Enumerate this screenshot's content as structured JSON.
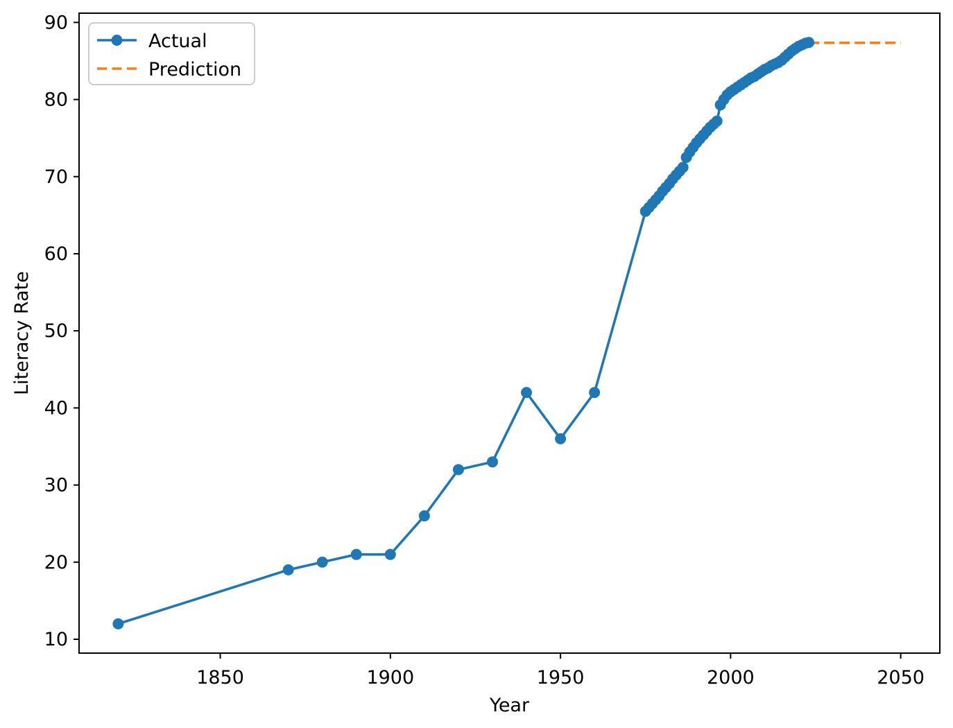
{
  "chart_data": {
    "type": "line",
    "title": "",
    "xlabel": "Year",
    "ylabel": "Literacy Rate",
    "xlim": [
      1808.5,
      2061.5
    ],
    "ylim": [
      8.2,
      91.2
    ],
    "xticks": [
      1850,
      1900,
      1950,
      2000,
      2050
    ],
    "yticks": [
      10,
      20,
      30,
      40,
      50,
      60,
      70,
      80,
      90
    ],
    "grid": false,
    "legend": {
      "position": "upper left",
      "items": [
        "Actual",
        "Prediction"
      ]
    },
    "series": [
      {
        "name": "Actual",
        "color": "#1f77b4",
        "line_style": "solid",
        "marker": "circle",
        "points": [
          [
            1820,
            12
          ],
          [
            1870,
            19
          ],
          [
            1880,
            20
          ],
          [
            1890,
            21
          ],
          [
            1900,
            21
          ],
          [
            1910,
            26
          ],
          [
            1920,
            32
          ],
          [
            1930,
            33
          ],
          [
            1940,
            42
          ],
          [
            1950,
            36
          ],
          [
            1960,
            42
          ],
          [
            1975,
            65.5
          ],
          [
            1976,
            66.0
          ],
          [
            1977,
            66.5
          ],
          [
            1978,
            67.0
          ],
          [
            1979,
            67.5
          ],
          [
            1980,
            68.1
          ],
          [
            1981,
            68.6
          ],
          [
            1982,
            69.1
          ],
          [
            1983,
            69.7
          ],
          [
            1984,
            70.2
          ],
          [
            1985,
            70.7
          ],
          [
            1986,
            71.2
          ],
          [
            1987,
            72.5
          ],
          [
            1988,
            73.2
          ],
          [
            1989,
            73.8
          ],
          [
            1990,
            74.4
          ],
          [
            1991,
            74.9
          ],
          [
            1992,
            75.4
          ],
          [
            1993,
            75.9
          ],
          [
            1994,
            76.4
          ],
          [
            1995,
            76.8
          ],
          [
            1996,
            77.2
          ],
          [
            1997,
            79.3
          ],
          [
            1998,
            80.0
          ],
          [
            1999,
            80.6
          ],
          [
            2000,
            81.0
          ],
          [
            2001,
            81.3
          ],
          [
            2002,
            81.6
          ],
          [
            2003,
            81.9
          ],
          [
            2004,
            82.2
          ],
          [
            2005,
            82.5
          ],
          [
            2006,
            82.8
          ],
          [
            2007,
            83.0
          ],
          [
            2008,
            83.3
          ],
          [
            2009,
            83.6
          ],
          [
            2010,
            83.9
          ],
          [
            2011,
            84.1
          ],
          [
            2012,
            84.4
          ],
          [
            2013,
            84.6
          ],
          [
            2014,
            84.8
          ],
          [
            2015,
            85.1
          ],
          [
            2016,
            85.5
          ],
          [
            2017,
            85.9
          ],
          [
            2018,
            86.3
          ],
          [
            2019,
            86.6
          ],
          [
            2020,
            86.9
          ],
          [
            2021,
            87.1
          ],
          [
            2022,
            87.3
          ],
          [
            2023,
            87.4
          ]
        ]
      },
      {
        "name": "Prediction",
        "color": "#ff7f0e",
        "line_style": "dashed",
        "marker": "none",
        "points": [
          [
            2023,
            87.35
          ],
          [
            2050,
            87.35
          ]
        ]
      }
    ]
  },
  "style": {
    "axis_color": "#000000",
    "legend_border_color": "#cccccc",
    "background": "#ffffff"
  }
}
